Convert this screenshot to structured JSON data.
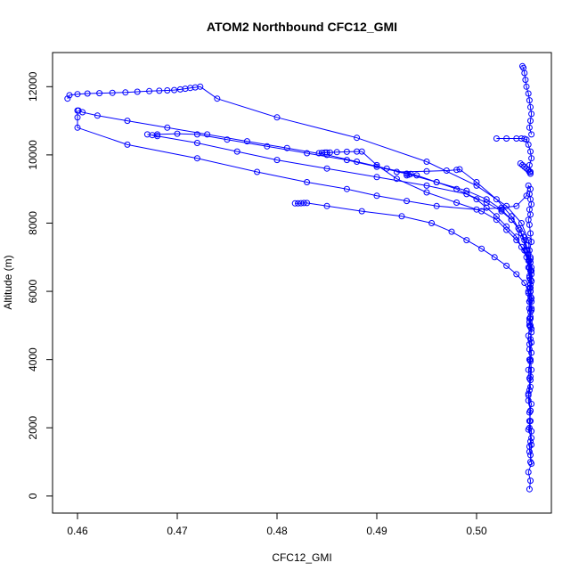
{
  "chart_data": {
    "type": "line",
    "title": "ATOM2 Northbound CFC12_GMI",
    "xlabel": "CFC12_GMI",
    "ylabel": "Altitude (m)",
    "xlim": [
      0.4575,
      0.5075
    ],
    "ylim": [
      -500,
      13000
    ],
    "xticks": [
      "0.46",
      "0.47",
      "0.48",
      "0.49",
      "0.50"
    ],
    "xtick_values": [
      0.46,
      0.47,
      0.48,
      0.49,
      0.5
    ],
    "yticks": [
      "0",
      "2000",
      "4000",
      "6000",
      "8000",
      "10000",
      "12000"
    ],
    "ytick_values": [
      0,
      2000,
      4000,
      6000,
      8000,
      10000,
      12000
    ],
    "grid": false,
    "color": "#0000ff",
    "series": [
      {
        "x": [
          0.5053,
          0.5054,
          0.5052,
          0.5055,
          0.5054,
          0.5053,
          0.5055,
          0.5052,
          0.5054,
          0.5053,
          0.5055,
          0.5052,
          0.5054,
          0.5053,
          0.5052,
          0.5054,
          0.5055,
          0.5053,
          0.5052,
          0.5054,
          0.5053,
          0.5055,
          0.5053,
          0.5052,
          0.5054,
          0.5053,
          0.5055,
          0.5054,
          0.5053,
          0.5055,
          0.5054,
          0.5053,
          0.5052,
          0.5054,
          0.5053,
          0.5055,
          0.5054,
          0.5053,
          0.5054,
          0.5052,
          0.505,
          0.504,
          0.5025,
          0.5,
          0.496,
          0.493,
          0.49,
          0.487,
          0.483,
          0.478,
          0.472,
          0.465,
          0.46,
          0.46,
          0.46
        ],
        "y": [
          200,
          450,
          700,
          950,
          1200,
          1450,
          1700,
          1950,
          2200,
          2450,
          2700,
          2950,
          3200,
          3450,
          3700,
          3950,
          4200,
          4450,
          4700,
          4950,
          5200,
          5450,
          5700,
          5950,
          6200,
          6450,
          6700,
          6950,
          7200,
          7450,
          7700,
          7950,
          8100,
          8250,
          8400,
          8550,
          8700,
          8850,
          9000,
          9100,
          8800,
          8500,
          8450,
          8400,
          8500,
          8650,
          8800,
          9000,
          9200,
          9500,
          9900,
          10300,
          10800,
          11100,
          11300
        ]
      },
      {
        "x": [
          0.4601,
          0.4605,
          0.462,
          0.465,
          0.469,
          0.473,
          0.477,
          0.481,
          0.485,
          0.488,
          0.491,
          0.494,
          0.496,
          0.498,
          0.5,
          0.501,
          0.502,
          0.503,
          0.504,
          0.5045,
          0.505,
          0.5052,
          0.5053,
          0.5054,
          0.5055,
          0.5053,
          0.5054,
          0.5055,
          0.5054,
          0.5053,
          0.5054,
          0.5055,
          0.5054,
          0.5053,
          0.5052,
          0.5054,
          0.5053,
          0.5055,
          0.5054,
          0.5053
        ],
        "y": [
          11300,
          11250,
          11150,
          11000,
          10800,
          10600,
          10400,
          10200,
          10000,
          9800,
          9600,
          9400,
          9200,
          9000,
          8700,
          8450,
          8200,
          7900,
          7600,
          7300,
          7000,
          6700,
          6400,
          6100,
          5800,
          5500,
          5200,
          4900,
          4600,
          4300,
          4000,
          3700,
          3400,
          3100,
          2800,
          2500,
          2200,
          1900,
          1600,
          1300
        ]
      },
      {
        "x": [
          0.459,
          0.4592,
          0.46,
          0.461,
          0.4622,
          0.4635,
          0.4648,
          0.466,
          0.4672,
          0.4682,
          0.469,
          0.4697,
          0.4703,
          0.4708,
          0.4713,
          0.4718,
          0.4723,
          0.474,
          0.48,
          0.488,
          0.495,
          0.5,
          0.503,
          0.5045,
          0.5052,
          0.5054,
          0.5055,
          0.5054,
          0.5053,
          0.5054,
          0.5055,
          0.5053,
          0.5054,
          0.5052,
          0.5054,
          0.5053,
          0.5055,
          0.5054
        ],
        "y": [
          11650,
          11750,
          11780,
          11800,
          11810,
          11820,
          11830,
          11850,
          11870,
          11880,
          11890,
          11900,
          11920,
          11940,
          11960,
          11980,
          12000,
          11650,
          11100,
          10500,
          9800,
          9100,
          8500,
          8000,
          7500,
          7000,
          6500,
          6000,
          5500,
          5000,
          4500,
          4000,
          3500,
          3000,
          2500,
          2000,
          1500,
          1000
        ]
      },
      {
        "x": [
          0.4675,
          0.468,
          0.47,
          0.472,
          0.475,
          0.479,
          0.483,
          0.487,
          0.49,
          0.493,
          0.496,
          0.499,
          0.501,
          0.5025,
          0.5035,
          0.5043,
          0.5048,
          0.5051,
          0.5053,
          0.5054,
          0.5055,
          0.5054,
          0.5053,
          0.5054,
          0.5053,
          0.5055
        ],
        "y": [
          10580,
          10600,
          10620,
          10600,
          10450,
          10250,
          10050,
          9850,
          9650,
          9450,
          9200,
          8950,
          8700,
          8400,
          8100,
          7800,
          7500,
          7200,
          6900,
          6600,
          6300,
          6000,
          5700,
          5400,
          5100,
          4800
        ]
      },
      {
        "x": [
          0.467,
          0.468,
          0.472,
          0.476,
          0.48,
          0.485,
          0.49,
          0.495,
          0.499,
          0.501,
          0.5025,
          0.5035,
          0.5042,
          0.5047,
          0.505,
          0.5052,
          0.5054,
          0.5055,
          0.5054,
          0.5053,
          0.5054
        ],
        "y": [
          10600,
          10550,
          10350,
          10100,
          9850,
          9600,
          9350,
          9100,
          8850,
          8600,
          8350,
          8100,
          7850,
          7600,
          7350,
          7100,
          6850,
          6600,
          6350,
          6100,
          5850
        ]
      },
      {
        "x": [
          0.4842,
          0.4845,
          0.4848,
          0.485,
          0.4853,
          0.486,
          0.487,
          0.488,
          0.4885,
          0.49,
          0.492,
          0.495,
          0.498,
          0.5005,
          0.502,
          0.503,
          0.504,
          0.5048,
          0.5052,
          0.5054,
          0.5055,
          0.5054,
          0.5053
        ],
        "y": [
          10050,
          10060,
          10070,
          10070,
          10070,
          10080,
          10090,
          10100,
          10100,
          9700,
          9300,
          8900,
          8600,
          8350,
          8100,
          7800,
          7500,
          7200,
          6900,
          6600,
          6300,
          6000,
          5700
        ]
      },
      {
        "x": [
          0.493,
          0.4932,
          0.4934,
          0.492,
          0.495,
          0.497,
          0.498,
          0.4983,
          0.5,
          0.502,
          0.5035,
          0.5045,
          0.505,
          0.5053,
          0.5054,
          0.5055
        ],
        "y": [
          9400,
          9420,
          9440,
          9500,
          9520,
          9540,
          9560,
          9580,
          9200,
          8700,
          8200,
          7700,
          7200,
          6700,
          6200,
          5700
        ]
      },
      {
        "x": [
          0.4818,
          0.4821,
          0.4824,
          0.4827,
          0.483,
          0.485,
          0.4885,
          0.4925,
          0.4955,
          0.4975,
          0.499,
          0.5005,
          0.5018,
          0.503,
          0.504,
          0.5048,
          0.5052,
          0.5054,
          0.5055,
          0.5054,
          0.5053
        ],
        "y": [
          8580,
          8580,
          8585,
          8590,
          8590,
          8500,
          8350,
          8200,
          8000,
          7750,
          7500,
          7250,
          7000,
          6750,
          6500,
          6250,
          6000,
          5750,
          5500,
          5250,
          5000
        ]
      },
      {
        "x": [
          0.502,
          0.503,
          0.504,
          0.5045,
          0.5048,
          0.505,
          0.5052,
          0.5054,
          0.5055,
          0.5053,
          0.5054
        ],
        "y": [
          10480,
          10480,
          10480,
          10480,
          10470,
          10450,
          10300,
          10100,
          9900,
          9700,
          9500
        ]
      },
      {
        "x": [
          0.5046,
          0.5047,
          0.5048,
          0.5049,
          0.505,
          0.5052,
          0.5053,
          0.5054,
          0.5055,
          0.5054,
          0.5053,
          0.5055
        ],
        "y": [
          12600,
          12550,
          12400,
          12200,
          12000,
          11800,
          11600,
          11400,
          11200,
          11000,
          10800,
          10600
        ]
      },
      {
        "x": [
          0.5044,
          0.5046,
          0.5048,
          0.505,
          0.5052,
          0.5053,
          0.5054
        ],
        "y": [
          9750,
          9700,
          9650,
          9600,
          9550,
          9500,
          9450
        ]
      }
    ]
  }
}
